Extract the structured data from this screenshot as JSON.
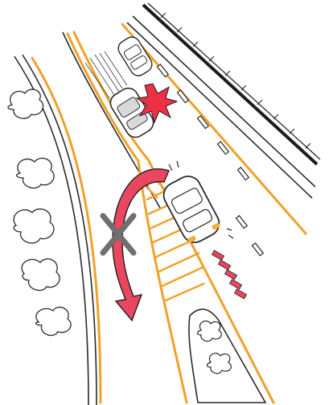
{
  "illustration": {
    "description_free": true,
    "colors": {
      "background": "#ffffff",
      "line": "#2a2a2a",
      "lane_marking": "#f0a12a",
      "hatch_marking": "#f0a12a",
      "danger_arrow": "#e9475f",
      "danger_arrow_stroke": "#1f1f1f",
      "forbidden_mark": "#6f6f6f",
      "impact_burst": "#ee2f45",
      "car_body": "#ffffff",
      "car_shadow": "#d9d9d9",
      "tail_light": "#f2b13c",
      "rail": "#1c1c1c"
    },
    "icons": [
      "car-icon",
      "impact-burst-icon",
      "u-turn-arrow-icon",
      "forbidden-x-icon",
      "tree-icon"
    ]
  }
}
